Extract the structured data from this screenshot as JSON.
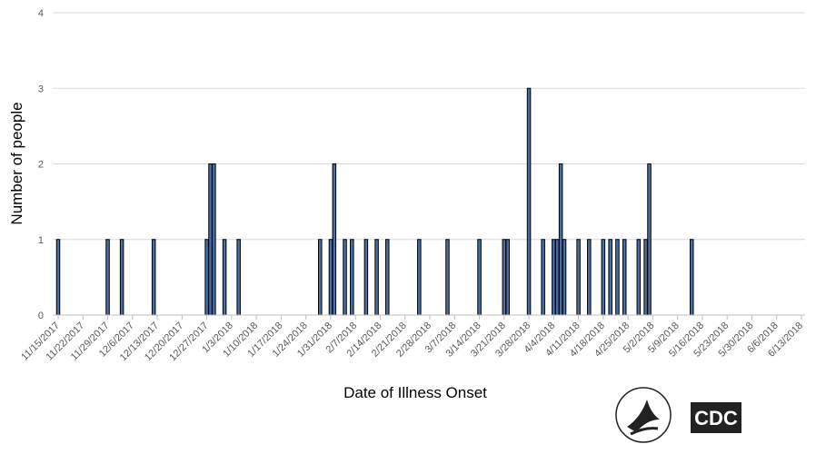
{
  "chart_data": {
    "type": "bar",
    "ylabel": "Number of people",
    "xlabel": "Date of Illness Onset",
    "color": "#4a6fa5",
    "grid": true,
    "ylim": [
      0,
      4
    ],
    "yticks": [
      0,
      1,
      2,
      3,
      4
    ],
    "xlim": [
      "2017-11-15",
      "2018-06-13"
    ],
    "xticks": [
      {
        "value": "2017-11-15",
        "label": "11/15/2017"
      },
      {
        "value": "2017-11-22",
        "label": "11/22/2017"
      },
      {
        "value": "2017-11-29",
        "label": "11/29/2017"
      },
      {
        "value": "2017-12-06",
        "label": "12/6/2017"
      },
      {
        "value": "2017-12-13",
        "label": "12/13/2017"
      },
      {
        "value": "2017-12-20",
        "label": "12/20/2017"
      },
      {
        "value": "2017-12-27",
        "label": "12/27/2017"
      },
      {
        "value": "2018-01-03",
        "label": "1/3/2018"
      },
      {
        "value": "2018-01-10",
        "label": "1/10/2018"
      },
      {
        "value": "2018-01-17",
        "label": "1/17/2018"
      },
      {
        "value": "2018-01-24",
        "label": "1/24/2018"
      },
      {
        "value": "2018-01-31",
        "label": "1/31/2018"
      },
      {
        "value": "2018-02-07",
        "label": "2/7/2018"
      },
      {
        "value": "2018-02-14",
        "label": "2/14/2018"
      },
      {
        "value": "2018-02-21",
        "label": "2/21/2018"
      },
      {
        "value": "2018-02-28",
        "label": "2/28/2018"
      },
      {
        "value": "2018-03-07",
        "label": "3/7/2018"
      },
      {
        "value": "2018-03-14",
        "label": "3/14/2018"
      },
      {
        "value": "2018-03-21",
        "label": "3/21/2018"
      },
      {
        "value": "2018-03-28",
        "label": "3/28/2018"
      },
      {
        "value": "2018-04-04",
        "label": "4/4/2018"
      },
      {
        "value": "2018-04-11",
        "label": "4/11/2018"
      },
      {
        "value": "2018-04-18",
        "label": "4/18/2018"
      },
      {
        "value": "2018-04-25",
        "label": "4/25/2018"
      },
      {
        "value": "2018-05-02",
        "label": "5/2/2018"
      },
      {
        "value": "2018-05-09",
        "label": "5/9/2018"
      },
      {
        "value": "2018-05-16",
        "label": "5/16/2018"
      },
      {
        "value": "2018-05-23",
        "label": "5/23/2018"
      },
      {
        "value": "2018-05-30",
        "label": "5/30/2018"
      },
      {
        "value": "2018-06-06",
        "label": "6/6/2018"
      },
      {
        "value": "2018-06-13",
        "label": "6/13/2018"
      }
    ],
    "x": [
      "2017-11-15",
      "2017-11-29",
      "2017-12-03",
      "2017-12-12",
      "2017-12-27",
      "2017-12-28",
      "2017-12-29",
      "2018-01-01",
      "2018-01-05",
      "2018-01-28",
      "2018-01-31",
      "2018-02-01",
      "2018-02-04",
      "2018-02-06",
      "2018-02-10",
      "2018-02-13",
      "2018-02-16",
      "2018-02-25",
      "2018-03-05",
      "2018-03-14",
      "2018-03-21",
      "2018-03-22",
      "2018-03-28",
      "2018-04-01",
      "2018-04-04",
      "2018-04-05",
      "2018-04-06",
      "2018-04-07",
      "2018-04-11",
      "2018-04-14",
      "2018-04-18",
      "2018-04-20",
      "2018-04-22",
      "2018-04-24",
      "2018-04-28",
      "2018-04-30",
      "2018-05-01",
      "2018-05-13"
    ],
    "values": [
      1,
      1,
      1,
      1,
      1,
      2,
      2,
      1,
      1,
      1,
      1,
      2,
      1,
      1,
      1,
      1,
      1,
      1,
      1,
      1,
      1,
      1,
      3,
      1,
      1,
      1,
      2,
      1,
      1,
      1,
      1,
      1,
      1,
      1,
      1,
      1,
      2,
      1
    ]
  },
  "logo": {
    "text": "CDC"
  }
}
